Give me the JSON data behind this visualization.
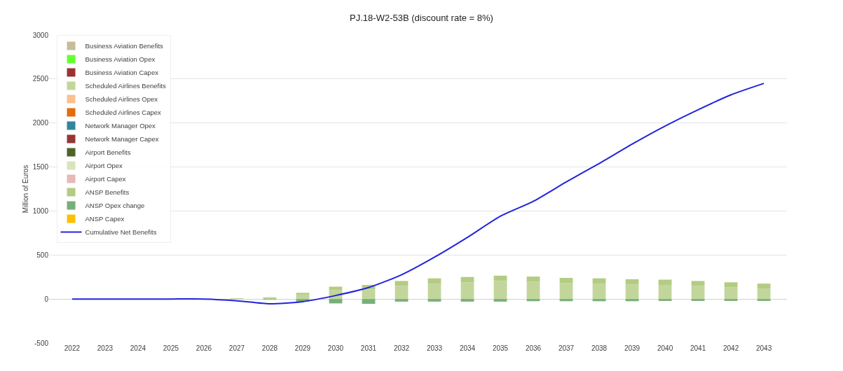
{
  "chart_data": {
    "type": "bar",
    "title": "PJ.18-W2-53B (discount rate = 8%)",
    "ylabel": "Million of Euros",
    "stacked": true,
    "categories": [
      "2022",
      "2023",
      "2024",
      "2025",
      "2026",
      "2027",
      "2028",
      "2029",
      "2030",
      "2031",
      "2032",
      "2033",
      "2034",
      "2035",
      "2036",
      "2037",
      "2038",
      "2039",
      "2040",
      "2041",
      "2042",
      "2043"
    ],
    "series": [
      {
        "name": "Business Aviation Benefits",
        "color": "#c4bd97",
        "values": [
          0,
          0,
          0,
          0,
          0,
          0,
          0,
          0,
          0,
          0,
          0,
          0,
          0,
          0,
          0,
          0,
          0,
          0,
          0,
          0,
          0,
          0
        ]
      },
      {
        "name": "Business Aviation Opex",
        "color": "#66ff33",
        "values": [
          0,
          0,
          0,
          0,
          0,
          0,
          0,
          0,
          0,
          0,
          0,
          0,
          0,
          0,
          0,
          0,
          0,
          0,
          0,
          0,
          0,
          0
        ]
      },
      {
        "name": "Business Aviation Capex",
        "color": "#993333",
        "values": [
          0,
          0,
          0,
          0,
          0,
          0,
          0,
          0,
          0,
          0,
          0,
          0,
          0,
          0,
          0,
          0,
          0,
          0,
          0,
          0,
          0,
          0
        ]
      },
      {
        "name": "Scheduled Airlines Benefits",
        "color": "#c2d69b",
        "values": [
          0,
          0,
          0,
          0,
          0,
          5,
          20,
          50,
          100,
          110,
          150,
          175,
          190,
          205,
          195,
          180,
          175,
          165,
          160,
          150,
          135,
          120
        ]
      },
      {
        "name": "Scheduled Airlines Opex",
        "color": "#fac090",
        "values": [
          0,
          0,
          0,
          0,
          0,
          0,
          0,
          0,
          0,
          0,
          0,
          0,
          0,
          0,
          0,
          0,
          0,
          0,
          0,
          0,
          0,
          0
        ]
      },
      {
        "name": "Scheduled Airlines Capex",
        "color": "#e46c0a",
        "values": [
          0,
          0,
          0,
          0,
          0,
          0,
          0,
          0,
          0,
          0,
          0,
          0,
          0,
          0,
          0,
          0,
          0,
          0,
          0,
          0,
          0,
          0
        ]
      },
      {
        "name": "Network Manager Opex",
        "color": "#31859c",
        "values": [
          0,
          0,
          0,
          0,
          0,
          0,
          0,
          0,
          0,
          0,
          0,
          0,
          0,
          0,
          0,
          0,
          0,
          0,
          0,
          0,
          0,
          0
        ]
      },
      {
        "name": "Network Manager Capex",
        "color": "#953735",
        "values": [
          0,
          0,
          0,
          0,
          0,
          0,
          0,
          0,
          0,
          0,
          0,
          0,
          0,
          0,
          0,
          0,
          0,
          0,
          0,
          0,
          0,
          0
        ]
      },
      {
        "name": "Airport Benefits",
        "color": "#4f6228",
        "values": [
          0,
          0,
          0,
          0,
          0,
          0,
          0,
          0,
          0,
          0,
          0,
          0,
          0,
          0,
          0,
          0,
          0,
          0,
          0,
          0,
          0,
          0
        ]
      },
      {
        "name": "Airport Opex",
        "color": "#d7e4bd",
        "values": [
          0,
          0,
          0,
          0,
          0,
          0,
          0,
          0,
          0,
          0,
          0,
          0,
          0,
          0,
          0,
          0,
          0,
          0,
          0,
          0,
          0,
          0
        ]
      },
      {
        "name": "Airport Capex",
        "color": "#e6b9b8",
        "values": [
          0,
          0,
          0,
          0,
          0,
          0,
          0,
          0,
          0,
          0,
          0,
          0,
          0,
          0,
          0,
          0,
          0,
          0,
          0,
          0,
          0,
          0
        ]
      },
      {
        "name": "ANSP Benefits",
        "color": "#b3cc82",
        "values": [
          0,
          0,
          0,
          0,
          0,
          0,
          0,
          20,
          40,
          50,
          55,
          60,
          60,
          60,
          60,
          60,
          60,
          60,
          60,
          55,
          55,
          55
        ]
      },
      {
        "name": "ANSP Opex change",
        "color": "#77b07a",
        "values": [
          0,
          0,
          0,
          0,
          0,
          0,
          -5,
          -30,
          -50,
          -55,
          -30,
          -30,
          -30,
          -30,
          -25,
          -25,
          -25,
          -25,
          -22,
          -22,
          -22,
          -22
        ]
      },
      {
        "name": "ANSP Capex",
        "color": "#ffc000",
        "values": [
          0,
          0,
          0,
          0,
          0,
          0,
          0,
          0,
          0,
          0,
          0,
          0,
          0,
          0,
          0,
          0,
          0,
          0,
          0,
          0,
          0,
          0
        ]
      },
      {
        "name": "Cumulative Net Benefits",
        "type": "line",
        "color": "#2222dd",
        "values": [
          0,
          0,
          0,
          0,
          0,
          -20,
          -55,
          -30,
          40,
          130,
          275,
          475,
          700,
          940,
          1110,
          1330,
          1540,
          1760,
          1965,
          2150,
          2320,
          2450
        ]
      }
    ],
    "ylim": [
      -500,
      3000
    ],
    "yticks": [
      -500,
      0,
      500,
      1000,
      1500,
      2000,
      2500,
      3000
    ],
    "grid": "y",
    "legend": "top left",
    "marker": "none",
    "line_style": "solid"
  }
}
